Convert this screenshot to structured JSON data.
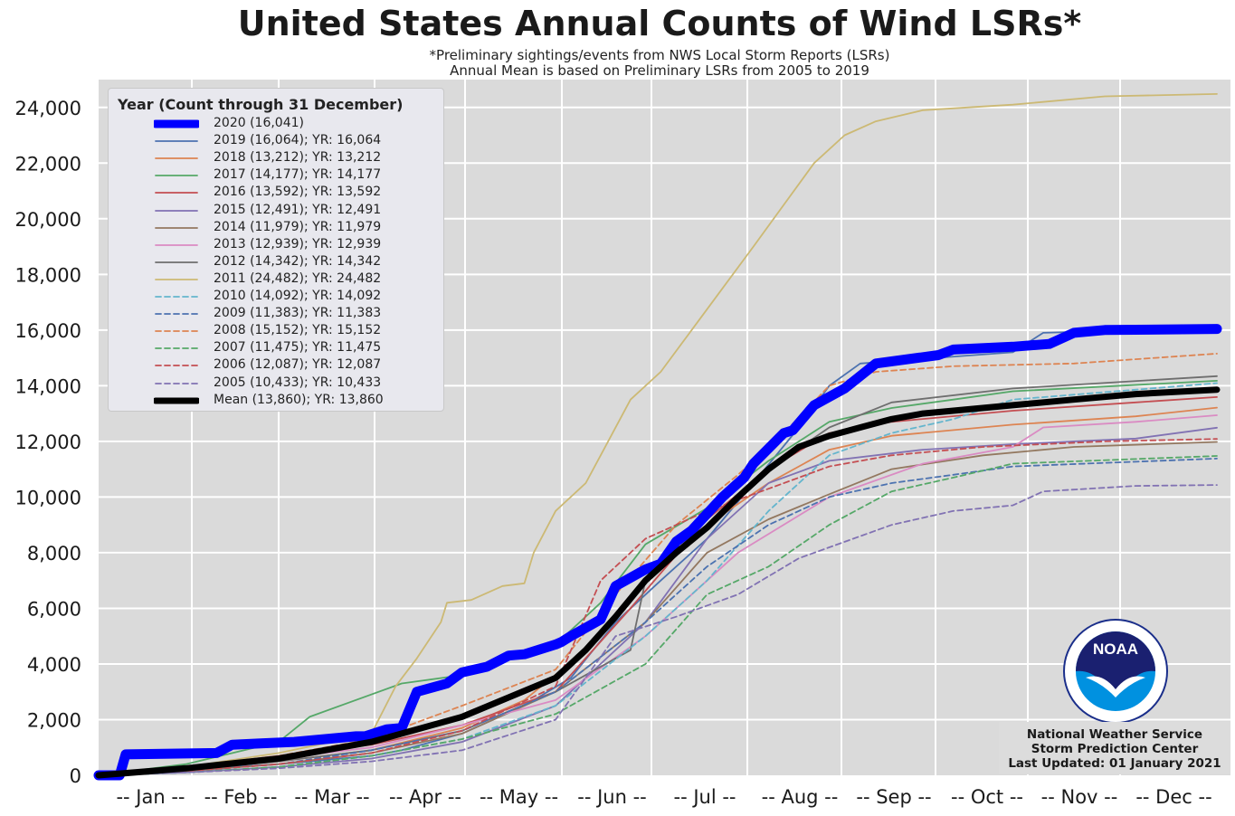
{
  "title": "United States Annual Counts of Wind LSRs*",
  "subtitle_1": "*Preliminary sightings/events from NWS Local Storm Reports (LSRs)",
  "subtitle_2": "Annual Mean is based on Preliminary LSRs from 2005 to 2019",
  "legend_title": "Year (Count through 31 December)",
  "credit": {
    "line1": "National Weather Service",
    "line2": "Storm Prediction Center",
    "line3": "Last Updated: 01 January 2021"
  },
  "logo": {
    "text": "NOAA",
    "icon": "noaa-logo-icon"
  },
  "chart_data": {
    "type": "line",
    "title": "United States Annual Counts of Wind LSRs*",
    "xlabel": "",
    "ylabel": "",
    "x_unit": "day of year",
    "xlim": [
      1,
      366
    ],
    "ylim": [
      0,
      25000
    ],
    "grid": true,
    "legend_placement": "top-left",
    "x_tick_labels": [
      "-- Jan --",
      "-- Feb --",
      "-- Mar --",
      "-- Apr --",
      "-- May --",
      "-- Jun --",
      "-- Jul --",
      "-- Aug --",
      "-- Sep --",
      "-- Oct --",
      "-- Nov --",
      "-- Dec --"
    ],
    "y_ticks": [
      0,
      2000,
      4000,
      6000,
      8000,
      10000,
      12000,
      14000,
      16000,
      18000,
      20000,
      22000,
      24000
    ],
    "y_tick_labels": [
      "0",
      "2,000",
      "4,000",
      "6,000",
      "8,000",
      "10,000",
      "12,000",
      "14,000",
      "16,000",
      "18,000",
      "20,000",
      "22,000",
      "24,000"
    ],
    "series": [
      {
        "name": "2020 (16,041)",
        "color": "#0000ff",
        "style": "solid",
        "width": 11,
        "x": [
          1,
          8,
          10,
          40,
          45,
          55,
          65,
          75,
          85,
          88,
          95,
          100,
          105,
          115,
          120,
          128,
          135,
          140,
          150,
          152,
          155,
          165,
          170,
          180,
          185,
          190,
          195,
          205,
          210,
          212,
          215,
          225,
          228,
          235,
          240,
          245,
          255,
          275,
          280,
          300,
          312,
          320,
          330,
          366
        ],
        "y": [
          0,
          0,
          750,
          800,
          1100,
          1150,
          1200,
          1300,
          1400,
          1400,
          1650,
          1700,
          3000,
          3300,
          3700,
          3900,
          4300,
          4350,
          4700,
          4800,
          5000,
          5600,
          6800,
          7400,
          7600,
          8400,
          8800,
          10000,
          10500,
          10700,
          11200,
          12300,
          12400,
          13300,
          13600,
          13900,
          14800,
          15100,
          15300,
          15400,
          15500,
          15900,
          16000,
          16041
        ]
      },
      {
        "name": "2019 (16,064); YR: 16,064",
        "color": "#4c72b0",
        "style": "solid",
        "width": 1.8,
        "x": [
          1,
          30,
          60,
          90,
          100,
          120,
          140,
          155,
          170,
          185,
          200,
          215,
          230,
          240,
          250,
          300,
          310,
          366
        ],
        "y": [
          0,
          200,
          400,
          700,
          900,
          1500,
          2500,
          3500,
          5500,
          7000,
          8500,
          10500,
          12500,
          14000,
          14800,
          15200,
          15900,
          16064
        ]
      },
      {
        "name": "2018 (13,212); YR: 13,212",
        "color": "#dd8452",
        "style": "solid",
        "width": 1.8,
        "x": [
          1,
          30,
          60,
          90,
          120,
          140,
          160,
          180,
          200,
          220,
          240,
          260,
          300,
          340,
          366
        ],
        "y": [
          0,
          200,
          500,
          900,
          1700,
          2700,
          4500,
          7000,
          9000,
          10500,
          11700,
          12200,
          12600,
          12900,
          13212
        ]
      },
      {
        "name": "2017 (14,177); YR: 14,177",
        "color": "#55a868",
        "style": "solid",
        "width": 1.8,
        "x": [
          1,
          30,
          60,
          70,
          100,
          120,
          150,
          165,
          180,
          200,
          220,
          240,
          260,
          280,
          300,
          366
        ],
        "y": [
          0,
          400,
          1200,
          2100,
          3300,
          3600,
          4700,
          6200,
          8300,
          9600,
          11300,
          12700,
          13200,
          13500,
          13800,
          14177
        ]
      },
      {
        "name": "2016 (13,592); YR: 13,592",
        "color": "#c44e52",
        "style": "solid",
        "width": 1.8,
        "x": [
          1,
          30,
          60,
          90,
          120,
          150,
          175,
          200,
          220,
          240,
          260,
          300,
          340,
          366
        ],
        "y": [
          0,
          300,
          700,
          1100,
          1800,
          3000,
          6000,
          9200,
          11000,
          12300,
          12700,
          13100,
          13400,
          13592
        ]
      },
      {
        "name": "2015 (12,491); YR: 12,491",
        "color": "#8172b3",
        "style": "solid",
        "width": 1.8,
        "x": [
          1,
          30,
          60,
          90,
          120,
          150,
          180,
          200,
          220,
          240,
          270,
          300,
          340,
          366
        ],
        "y": [
          0,
          100,
          300,
          600,
          1200,
          2500,
          5500,
          8500,
          10500,
          11300,
          11700,
          11900,
          12100,
          12491
        ]
      },
      {
        "name": "2014 (11,979); YR: 11,979",
        "color": "#937860",
        "style": "solid",
        "width": 1.8,
        "x": [
          1,
          30,
          60,
          90,
          120,
          150,
          180,
          200,
          220,
          240,
          260,
          290,
          320,
          366
        ],
        "y": [
          0,
          150,
          400,
          800,
          1500,
          3000,
          5500,
          8000,
          9200,
          10100,
          11000,
          11500,
          11800,
          11979
        ]
      },
      {
        "name": "2013 (12,939); YR: 12,939",
        "color": "#da8bc3",
        "style": "solid",
        "width": 1.8,
        "x": [
          1,
          30,
          60,
          90,
          120,
          150,
          180,
          210,
          240,
          270,
          300,
          310,
          340,
          366
        ],
        "y": [
          0,
          300,
          600,
          1000,
          1800,
          2700,
          5000,
          8000,
          10000,
          11200,
          11800,
          12500,
          12700,
          12939
        ]
      },
      {
        "name": "2012 (14,342); YR: 14,342",
        "color": "#6e6e6e",
        "style": "solid",
        "width": 1.8,
        "x": [
          1,
          30,
          60,
          90,
          120,
          150,
          175,
          180,
          200,
          220,
          240,
          260,
          300,
          366
        ],
        "y": [
          0,
          200,
          500,
          900,
          1600,
          3000,
          4500,
          7000,
          9000,
          11000,
          12500,
          13400,
          13900,
          14342
        ]
      },
      {
        "name": "2011 (24,482); YR: 24,482",
        "color": "#ccb974",
        "style": "solid",
        "width": 1.8,
        "x": [
          1,
          30,
          60,
          90,
          98,
          105,
          113,
          115,
          123,
          133,
          140,
          143,
          150,
          160,
          165,
          175,
          185,
          195,
          205,
          215,
          225,
          235,
          245,
          255,
          270,
          300,
          330,
          366
        ],
        "y": [
          0,
          300,
          800,
          1500,
          3200,
          4200,
          5500,
          6200,
          6300,
          6800,
          6900,
          8000,
          9500,
          10500,
          11500,
          13500,
          14500,
          16000,
          17500,
          19000,
          20500,
          22000,
          23000,
          23500,
          23900,
          24100,
          24400,
          24482
        ]
      },
      {
        "name": "2010 (14,092); YR: 14,092",
        "color": "#64b5cd",
        "style": "dashed",
        "width": 1.8,
        "x": [
          1,
          30,
          60,
          90,
          120,
          150,
          180,
          200,
          220,
          240,
          260,
          280,
          300,
          366
        ],
        "y": [
          0,
          100,
          300,
          700,
          1300,
          2500,
          5000,
          7000,
          9500,
          11500,
          12300,
          12800,
          13500,
          14092
        ]
      },
      {
        "name": "2009 (11,383); YR: 11,383",
        "color": "#4c72b0",
        "style": "dashed",
        "width": 1.8,
        "x": [
          1,
          30,
          60,
          90,
          120,
          150,
          180,
          200,
          220,
          240,
          260,
          280,
          300,
          366
        ],
        "y": [
          0,
          150,
          400,
          900,
          1600,
          3000,
          5500,
          7500,
          9000,
          10000,
          10500,
          10800,
          11100,
          11383
        ]
      },
      {
        "name": "2008 (15,152); YR: 15,152",
        "color": "#dd8452",
        "style": "dashed",
        "width": 1.8,
        "x": [
          1,
          30,
          60,
          90,
          120,
          150,
          170,
          190,
          210,
          225,
          240,
          255,
          280,
          320,
          366
        ],
        "y": [
          0,
          300,
          700,
          1300,
          2500,
          3800,
          6500,
          9000,
          10800,
          12300,
          14000,
          14500,
          14700,
          14800,
          15152
        ]
      },
      {
        "name": "2007 (11,475); YR: 11,475",
        "color": "#55a868",
        "style": "dashed",
        "width": 1.8,
        "x": [
          1,
          30,
          60,
          90,
          120,
          150,
          180,
          200,
          220,
          240,
          260,
          280,
          300,
          366
        ],
        "y": [
          0,
          100,
          300,
          700,
          1300,
          2200,
          4000,
          6500,
          7500,
          9000,
          10200,
          10700,
          11200,
          11475
        ]
      },
      {
        "name": "2006 (12,087); YR: 12,087",
        "color": "#c44e52",
        "style": "dashed",
        "width": 1.8,
        "x": [
          1,
          30,
          60,
          90,
          120,
          150,
          165,
          180,
          200,
          220,
          240,
          260,
          290,
          330,
          366
        ],
        "y": [
          0,
          150,
          400,
          800,
          1600,
          3200,
          7000,
          8500,
          9500,
          10300,
          11100,
          11500,
          11800,
          12000,
          12087
        ]
      },
      {
        "name": "2005 (10,433); YR: 10,433",
        "color": "#8172b3",
        "style": "dashed",
        "width": 1.8,
        "x": [
          1,
          30,
          60,
          90,
          120,
          150,
          170,
          190,
          210,
          230,
          260,
          280,
          300,
          310,
          340,
          366
        ],
        "y": [
          0,
          100,
          250,
          500,
          900,
          2000,
          5000,
          5700,
          6500,
          7800,
          9000,
          9500,
          9700,
          10200,
          10400,
          10433
        ]
      },
      {
        "name": "Mean (13,860); YR: 13,860",
        "color": "#000000",
        "style": "solid",
        "width": 7,
        "x": [
          1,
          30,
          60,
          90,
          120,
          150,
          160,
          170,
          180,
          190,
          200,
          210,
          220,
          230,
          240,
          250,
          260,
          270,
          280,
          300,
          320,
          340,
          366
        ],
        "y": [
          0,
          250,
          600,
          1200,
          2100,
          3500,
          4500,
          5700,
          7000,
          8000,
          8900,
          10000,
          11000,
          11800,
          12200,
          12500,
          12800,
          13000,
          13100,
          13300,
          13500,
          13700,
          13860
        ]
      }
    ]
  }
}
